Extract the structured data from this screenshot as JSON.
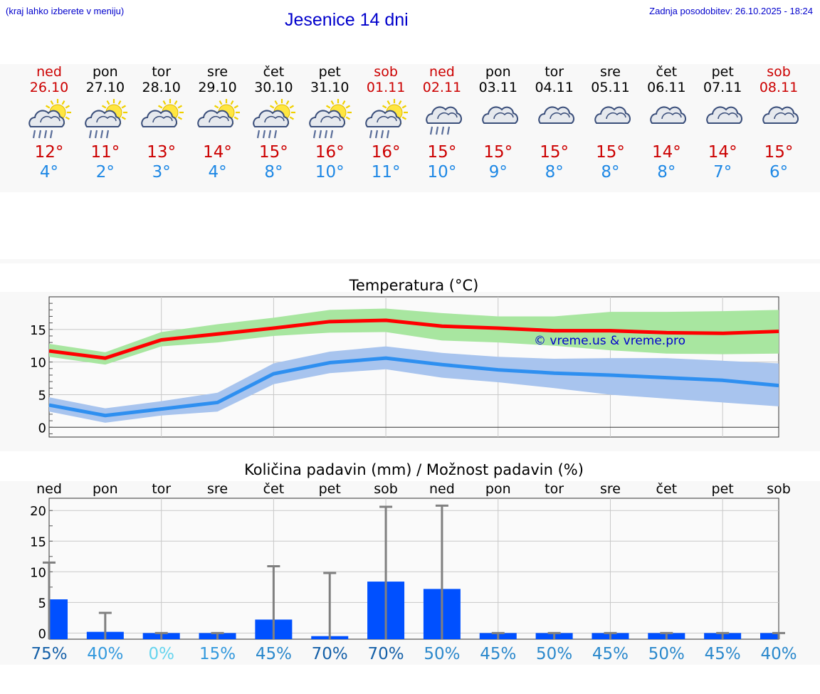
{
  "header": {
    "hint": "(kraj lahko izberete v meniju)",
    "title": "Jesenice 14 dni",
    "updated": "Zadnja posodobitev: 26.10.2025 - 18:24"
  },
  "days": [
    {
      "name": "ned",
      "date": "26.10",
      "weekend": true,
      "icon": "sun-cloud-rain-icon",
      "tmax": "12°",
      "tmin": "4°"
    },
    {
      "name": "pon",
      "date": "27.10",
      "weekend": false,
      "icon": "sun-cloud-rain-icon",
      "tmax": "11°",
      "tmin": "2°"
    },
    {
      "name": "tor",
      "date": "28.10",
      "weekend": false,
      "icon": "sun-cloud-icon",
      "tmax": "13°",
      "tmin": "3°"
    },
    {
      "name": "sre",
      "date": "29.10",
      "weekend": false,
      "icon": "sun-cloud-icon",
      "tmax": "14°",
      "tmin": "4°"
    },
    {
      "name": "čet",
      "date": "30.10",
      "weekend": false,
      "icon": "sun-cloud-rain-icon",
      "tmax": "15°",
      "tmin": "8°"
    },
    {
      "name": "pet",
      "date": "31.10",
      "weekend": false,
      "icon": "sun-cloud-rain-icon",
      "tmax": "16°",
      "tmin": "10°"
    },
    {
      "name": "sob",
      "date": "01.11",
      "weekend": true,
      "icon": "sun-cloud-rain-icon",
      "tmax": "16°",
      "tmin": "11°"
    },
    {
      "name": "ned",
      "date": "02.11",
      "weekend": true,
      "icon": "cloud-rain-icon",
      "tmax": "15°",
      "tmin": "10°"
    },
    {
      "name": "pon",
      "date": "03.11",
      "weekend": false,
      "icon": "cloud-icon",
      "tmax": "15°",
      "tmin": "9°"
    },
    {
      "name": "tor",
      "date": "04.11",
      "weekend": false,
      "icon": "cloud-icon",
      "tmax": "15°",
      "tmin": "8°"
    },
    {
      "name": "sre",
      "date": "05.11",
      "weekend": false,
      "icon": "cloud-icon",
      "tmax": "15°",
      "tmin": "8°"
    },
    {
      "name": "čet",
      "date": "06.11",
      "weekend": false,
      "icon": "cloud-icon",
      "tmax": "14°",
      "tmin": "8°"
    },
    {
      "name": "pet",
      "date": "07.11",
      "weekend": false,
      "icon": "cloud-icon",
      "tmax": "14°",
      "tmin": "7°"
    },
    {
      "name": "sob",
      "date": "08.11",
      "weekend": true,
      "icon": "cloud-icon",
      "tmax": "15°",
      "tmin": "6°"
    }
  ],
  "colors": {
    "max_line": "#ff0000",
    "max_band": "#a8e6a0",
    "min_line": "#2e8ff0",
    "min_band": "#a8c4ee",
    "bar": "#0050ff",
    "whisker": "#808080",
    "watermark": "#0000cc"
  },
  "chart_data": [
    {
      "type": "line",
      "title": "Temperatura (°C)",
      "watermark": "© vreme.us & vreme.pro",
      "ylim": [
        -1.5,
        20
      ],
      "yticks": [
        0,
        5,
        10,
        15
      ],
      "grid": true,
      "x": [
        "26.10",
        "27.10",
        "28.10",
        "29.10",
        "30.10",
        "31.10",
        "01.11",
        "02.11",
        "03.11",
        "04.11",
        "05.11",
        "06.11",
        "07.11",
        "08.11"
      ],
      "series": [
        {
          "values": [
            11.7,
            10.6,
            13.4,
            14.3,
            15.2,
            16.2,
            16.4,
            15.5,
            15.2,
            14.8,
            14.8,
            14.5,
            14.4,
            14.7
          ],
          "upper": [
            12.8,
            11.5,
            14.6,
            15.8,
            16.8,
            18.0,
            18.2,
            17.5,
            17.0,
            17.0,
            17.7,
            17.7,
            17.8,
            18.0
          ],
          "lower": [
            10.8,
            9.6,
            12.4,
            13.0,
            14.0,
            14.5,
            14.6,
            13.3,
            13.0,
            12.5,
            11.8,
            11.3,
            11.2,
            11.3
          ]
        },
        {
          "values": [
            3.4,
            1.8,
            2.8,
            3.8,
            8.2,
            9.9,
            10.6,
            9.6,
            8.8,
            8.3,
            8.0,
            7.6,
            7.2,
            6.4
          ],
          "upper": [
            4.6,
            2.9,
            4.0,
            5.3,
            9.8,
            11.6,
            12.4,
            11.4,
            10.8,
            10.5,
            10.6,
            10.6,
            10.2,
            9.8
          ],
          "lower": [
            2.4,
            0.7,
            1.8,
            2.4,
            6.6,
            8.3,
            8.9,
            7.6,
            6.9,
            6.0,
            5.0,
            4.4,
            3.8,
            3.2
          ]
        }
      ]
    },
    {
      "type": "bar",
      "title": "Količina padavin (mm) / Možnost padavin (%)",
      "ylim": [
        -1,
        22
      ],
      "yticks": [
        0,
        5,
        10,
        15,
        20
      ],
      "grid": true,
      "categories": [
        "ned",
        "pon",
        "tor",
        "sre",
        "čet",
        "pet",
        "sob",
        "ned",
        "pon",
        "tor",
        "sre",
        "čet",
        "pet",
        "sob"
      ],
      "values": [
        5.5,
        0.2,
        0,
        0,
        2.2,
        -0.5,
        8.4,
        7.2,
        0,
        0,
        0,
        0,
        0,
        0
      ],
      "max": [
        11.5,
        3.3,
        0,
        0,
        10.9,
        9.8,
        20.6,
        20.8,
        0,
        0,
        0,
        0,
        0,
        0
      ],
      "chance": [
        "75%",
        "40%",
        "0%",
        "15%",
        "45%",
        "70%",
        "70%",
        "50%",
        "45%",
        "50%",
        "45%",
        "50%",
        "45%",
        "40%"
      ],
      "chance_colors": [
        "#1560a8",
        "#3399dd",
        "#66d4ee",
        "#3399dd",
        "#2a88cc",
        "#1560a8",
        "#1560a8",
        "#2a88cc",
        "#2a88cc",
        "#2a88cc",
        "#2a88cc",
        "#2a88cc",
        "#2a88cc",
        "#2a88cc"
      ]
    }
  ]
}
